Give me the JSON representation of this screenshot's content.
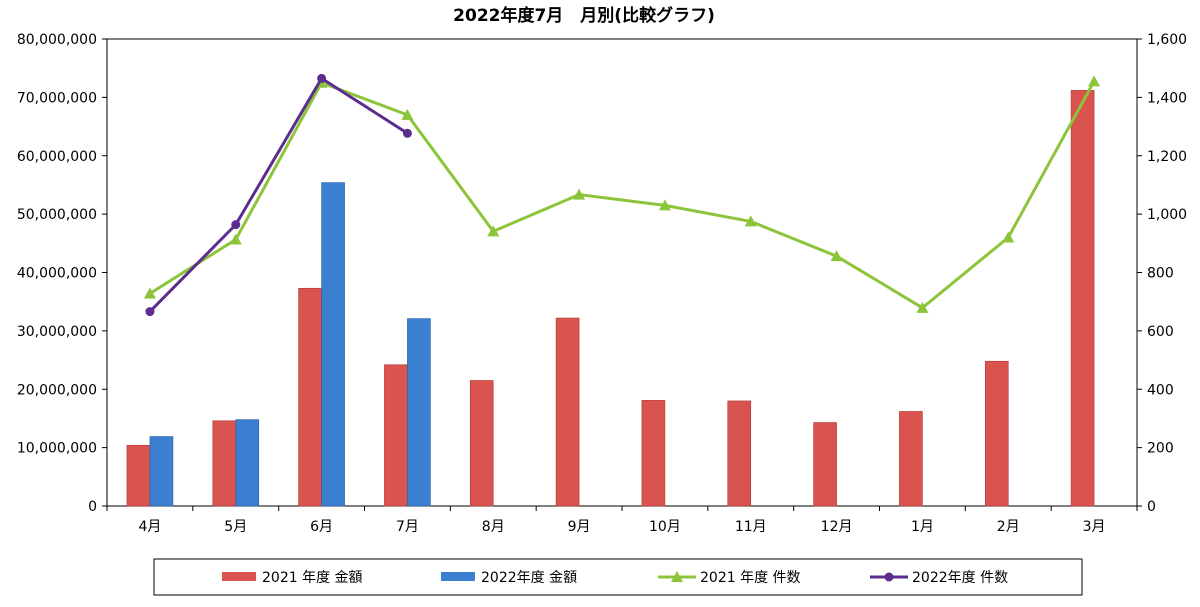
{
  "chart_data": {
    "type": "bar",
    "title": "2022年度7月　月別(比較グラフ)",
    "categories": [
      "4月",
      "5月",
      "6月",
      "7月",
      "8月",
      "9月",
      "10月",
      "11月",
      "12月",
      "1月",
      "2月",
      "3月"
    ],
    "left_axis": {
      "min": 0,
      "max": 80000000,
      "ticks": [
        "0",
        "10,000,000",
        "20,000,000",
        "30,000,000",
        "40,000,000",
        "50,000,000",
        "60,000,000",
        "70,000,000",
        "80,000,000"
      ]
    },
    "right_axis": {
      "min": 0,
      "max": 1600,
      "ticks": [
        "0",
        "200",
        "400",
        "600",
        "800",
        "1,000",
        "1,200",
        "1,400",
        "1,600"
      ]
    },
    "grid": false,
    "legend_position": "bottom",
    "series": [
      {
        "name": "2021 年度 金額",
        "type": "bar",
        "axis": "left",
        "color": "#d9534f",
        "values": [
          10400000,
          14600000,
          37300000,
          24200000,
          21500000,
          32200000,
          18100000,
          18000000,
          14300000,
          16200000,
          24800000,
          71200000
        ]
      },
      {
        "name": "2022年度 金額",
        "type": "bar",
        "axis": "left",
        "color": "#3a7fd0",
        "values": [
          11900000,
          14800000,
          55400000,
          32100000,
          null,
          null,
          null,
          null,
          null,
          null,
          null,
          null
        ]
      },
      {
        "name": "2021 年度 件数",
        "type": "line",
        "axis": "right",
        "marker": "triangle",
        "color": "#8cc43a",
        "values": [
          728,
          913,
          1450,
          1340,
          941,
          1067,
          1030,
          975,
          856,
          679,
          920,
          1455
        ]
      },
      {
        "name": "2022年度 件数",
        "type": "line",
        "axis": "right",
        "marker": "circle",
        "color": "#5b2d8f",
        "values": [
          666,
          964,
          1465,
          1277,
          null,
          null,
          null,
          null,
          null,
          null,
          null,
          null
        ]
      }
    ]
  }
}
